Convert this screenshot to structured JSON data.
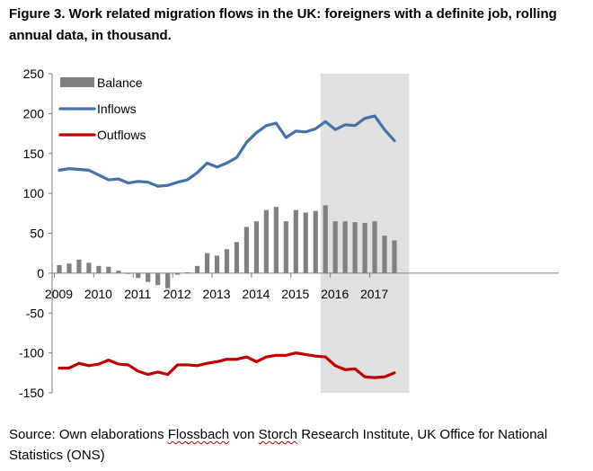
{
  "figure": {
    "title": "Figure 3. Work related migration flows in the UK: foreigners with a definite job, rolling annual data, in thousand.",
    "source_prefix": "Source: Own elaborations ",
    "source_flossbach": "Flossbach",
    "source_von": " von ",
    "source_storch": "Storch",
    "source_suffix": " Research Institute, UK Office for National Statistics (ONS)"
  },
  "chart_data": {
    "type": "bar+line",
    "title": "",
    "xlabel": "",
    "ylabel": "",
    "ylim": [
      -150,
      250
    ],
    "yticks": [
      250,
      200,
      150,
      100,
      50,
      0,
      -50,
      -100,
      -150
    ],
    "year_labels": [
      "2009",
      "2010",
      "2011",
      "2012",
      "2013",
      "2014",
      "2015",
      "2016",
      "2017"
    ],
    "x_quarters": [
      "2009 Q1",
      "2009 Q2",
      "2009 Q3",
      "2009 Q4",
      "2010 Q1",
      "2010 Q2",
      "2010 Q3",
      "2010 Q4",
      "2011 Q1",
      "2011 Q2",
      "2011 Q3",
      "2011 Q4",
      "2012 Q1",
      "2012 Q2",
      "2012 Q3",
      "2012 Q4",
      "2013 Q1",
      "2013 Q2",
      "2013 Q3",
      "2013 Q4",
      "2014 Q1",
      "2014 Q2",
      "2014 Q3",
      "2014 Q4",
      "2015 Q1",
      "2015 Q2",
      "2015 Q3",
      "2015 Q4",
      "2016 Q1",
      "2016 Q2",
      "2016 Q3",
      "2016 Q4",
      "2017 Q1",
      "2017 Q2",
      "2017 Q3",
      "2017 Q4"
    ],
    "shaded_region": {
      "from": "2015 Q4",
      "to": "2017 Q4",
      "color": "#e0e0e0"
    },
    "grid": false,
    "legend_position": "top-left",
    "series": [
      {
        "name": "Balance",
        "kind": "bar",
        "color": "#808080",
        "values": [
          10,
          12,
          17,
          13,
          9,
          8,
          3,
          -1,
          -6,
          -11,
          -15,
          -19,
          -2,
          1,
          9,
          25,
          22,
          30,
          39,
          58,
          65,
          79,
          83,
          65,
          79,
          76,
          78,
          85,
          65,
          65,
          64,
          63,
          65,
          47,
          41
        ]
      },
      {
        "name": "Inflows",
        "kind": "line",
        "color": "#4472a8",
        "values": [
          129,
          131,
          130,
          129,
          123,
          117,
          118,
          113,
          115,
          114,
          109,
          110,
          114,
          117,
          126,
          138,
          133,
          138,
          145,
          164,
          176,
          185,
          188,
          170,
          178,
          177,
          181,
          190,
          180,
          186,
          185,
          194,
          197,
          180,
          166
        ]
      },
      {
        "name": "Outflows",
        "kind": "line",
        "color": "#c00000",
        "values": [
          -119,
          -119,
          -113,
          -116,
          -114,
          -109,
          -114,
          -115,
          -123,
          -127,
          -124,
          -127,
          -115,
          -115,
          -116,
          -113,
          -111,
          -108,
          -108,
          -105,
          -111,
          -105,
          -103,
          -103,
          -100,
          -102,
          -104,
          -105,
          -116,
          -121,
          -120,
          -130,
          -131,
          -130,
          -125
        ]
      }
    ]
  }
}
